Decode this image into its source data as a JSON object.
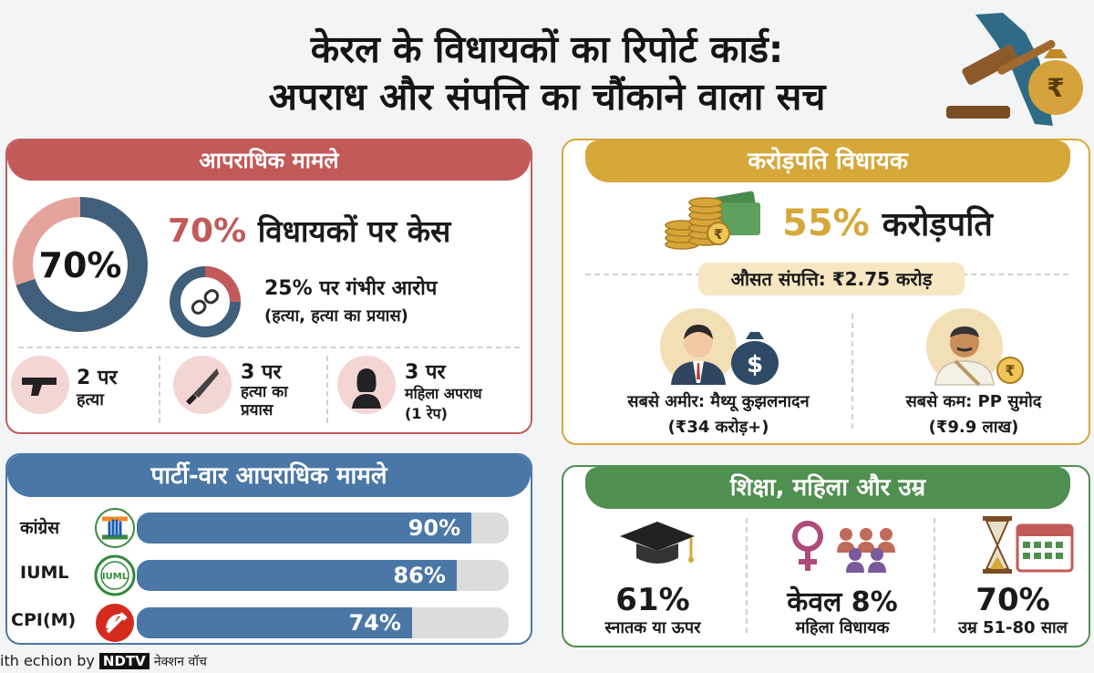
{
  "title": {
    "line1": "केरल के विधायकों का रिपोर्ट कार्ड:",
    "line2": "अपराध और संपत्ति का चौंकाने वाला सच"
  },
  "crime": {
    "header": "आपराधिक मामले",
    "donut_value": "70%",
    "donut_fraction": 0.7,
    "headline_pct": "70%",
    "headline_text": "विधायकों पर केस",
    "serious_pct": "25% पर गंभीर आरोप",
    "serious_note": "(हत्या, हत्या का प्रयास)",
    "serious_fraction": 0.25,
    "items": [
      {
        "count": "2 पर",
        "label": "हत्या",
        "icon": "gun-icon"
      },
      {
        "count": "3 पर",
        "label": "हत्या का प्रयास",
        "icon": "knife-icon"
      },
      {
        "count": "3 पर",
        "label": "महिला अपराध",
        "note": "(1 रेप)",
        "icon": "woman-icon"
      }
    ]
  },
  "rich": {
    "header": "करोड़पति विधायक",
    "pct": "55%",
    "pct_text": "करोड़पति",
    "avg": "औसत संपत्ति: ₹2.75 करोड़",
    "richest_label": "सबसे अमीर: मैथ्यू कुझलनादन",
    "richest_value": "(₹34 करोड़+)",
    "poorest_label": "सबसे कम: PP सुमोद",
    "poorest_value": "(₹9.9 लाख)"
  },
  "party": {
    "header": "पार्टी-वार आपराधिक मामले",
    "rows": [
      {
        "name": "कांग्रेस",
        "value": 90,
        "label": "90%",
        "logo": "congress-hand-logo"
      },
      {
        "name": "IUML",
        "value": 86,
        "label": "86%",
        "logo": "iuml-logo"
      },
      {
        "name": "CPI(M)",
        "value": 74,
        "label": "74%",
        "logo": "cpim-hammer-sickle-logo"
      }
    ]
  },
  "edu": {
    "header": "शिक्षा, महिला और उम्र",
    "items": [
      {
        "value": "61%",
        "label": "स्नातक या ऊपर",
        "icon": "graduation-cap-icon"
      },
      {
        "value": "केवल 8%",
        "label": "महिला विधायक",
        "icon": "women-group-icon"
      },
      {
        "value": "70%",
        "label": "उम्र 51-80 साल",
        "icon": "hourglass-calendar-icon"
      }
    ]
  },
  "footer": {
    "credit": "ith echion by",
    "brand": "NDTV",
    "source": "नेक्शन वॉच"
  },
  "colors": {
    "crime": "#c25a5a",
    "rich": "#d6a83a",
    "party": "#4a77a6",
    "edu": "#4f8f4f"
  }
}
